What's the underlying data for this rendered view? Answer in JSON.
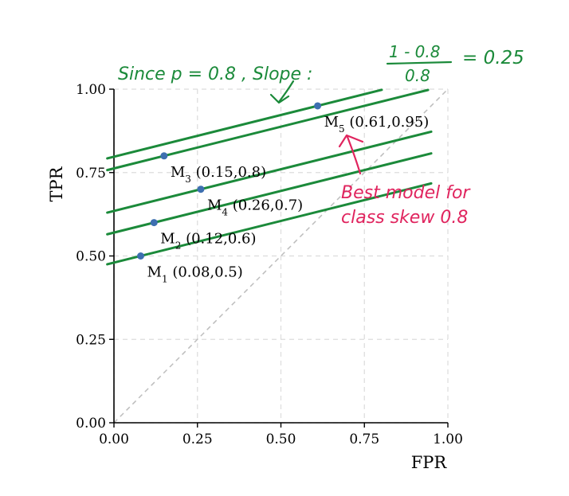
{
  "chart_data": {
    "type": "scatter",
    "xlabel": "FPR",
    "ylabel": "TPR",
    "xlim": [
      0,
      1
    ],
    "ylim": [
      0,
      1
    ],
    "x_ticks": [
      "0.00",
      "0.25",
      "0.50",
      "0.75",
      "1.00"
    ],
    "y_ticks": [
      "0.00",
      "0.25",
      "0.50",
      "0.75",
      "1.00"
    ],
    "grid": true,
    "diagonal_reference": true,
    "points": [
      {
        "name": "M",
        "sub": "1",
        "coords": "(0.08,0.5)",
        "x": 0.08,
        "y": 0.5
      },
      {
        "name": "M",
        "sub": "2",
        "coords": "(0.12,0.6)",
        "x": 0.12,
        "y": 0.6
      },
      {
        "name": "M",
        "sub": "3",
        "coords": "(0.15,0.8)",
        "x": 0.15,
        "y": 0.8
      },
      {
        "name": "M",
        "sub": "4",
        "coords": "(0.26,0.7)",
        "x": 0.26,
        "y": 0.7
      },
      {
        "name": "M",
        "sub": "5",
        "coords": "(0.61,0.95)",
        "x": 0.61,
        "y": 0.95
      }
    ],
    "iso_lines": {
      "slope": 0.25,
      "intercepts": [
        0.48,
        0.57,
        0.635,
        0.7625,
        0.7975
      ]
    },
    "annotations": {
      "slope_note_left": "Since p = 0.8 ,  Slope  :",
      "fraction_numerator": "1 - 0.8",
      "fraction_denominator": "0.8",
      "slope_result": "= 0.25",
      "best_model_line1": "Best model for",
      "best_model_line2": "class skew 0.8"
    },
    "colors": {
      "point": "#3d6fb0",
      "iso_line": "#1b8a3a",
      "handwriting_green": "#1b8a3a",
      "handwriting_pink": "#e0245e",
      "grid": "#dcdcdc",
      "diagonal": "#bdbdbd",
      "axis": "#000000"
    }
  }
}
